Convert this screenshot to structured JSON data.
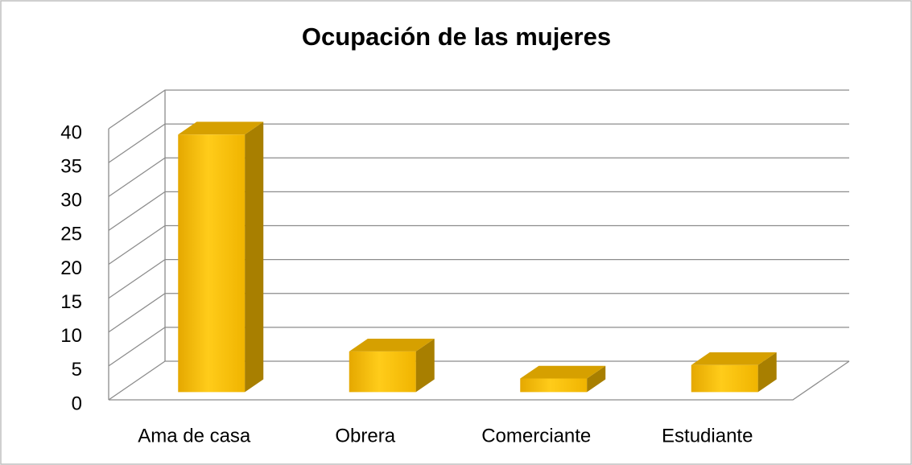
{
  "chart_data": {
    "type": "bar3d",
    "title": "Ocupación de las mujeres",
    "categories": [
      "Ama de casa",
      "Obrera",
      "Comerciante",
      "Estudiante"
    ],
    "values": [
      38,
      6,
      2,
      4
    ],
    "color": "#ffc000",
    "ylim": [
      0,
      40
    ],
    "yticks": [
      0,
      5,
      10,
      15,
      20,
      25,
      30,
      35,
      40
    ],
    "grid": true
  }
}
